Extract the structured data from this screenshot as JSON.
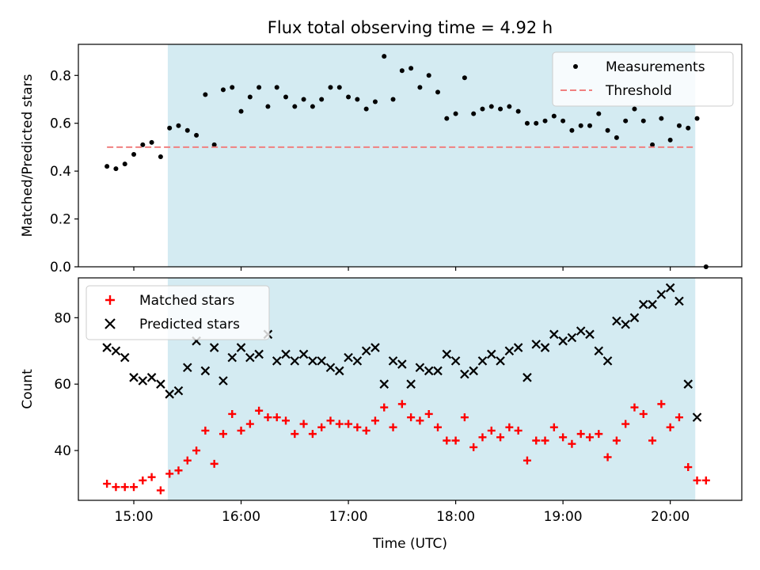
{
  "title": "Flux total observing time = 4.92 h",
  "colors": {
    "band": "#add8e6",
    "measurement": "#000000",
    "threshold": "#f08080",
    "matched": "#ff0000",
    "predicted": "#000000"
  },
  "chart_data": [
    {
      "type": "scatter",
      "ylabel": "Matched/Predicted stars",
      "ylim": [
        0,
        0.93
      ],
      "yticks": [
        "0.0",
        "0.2",
        "0.4",
        "0.6",
        "0.8"
      ],
      "xlim": [
        "14:29",
        "20:40"
      ],
      "shaded_band": [
        "15:19",
        "20:14"
      ],
      "legend": {
        "placement": "top-right",
        "entries": [
          "Measurements",
          "Threshold"
        ]
      },
      "series": [
        {
          "name": "Measurements",
          "x": [
            "14:45",
            "14:50",
            "14:55",
            "15:00",
            "15:05",
            "15:10",
            "15:15",
            "15:20",
            "15:25",
            "15:30",
            "15:35",
            "15:40",
            "15:45",
            "15:50",
            "15:55",
            "16:00",
            "16:05",
            "16:10",
            "16:15",
            "16:20",
            "16:25",
            "16:30",
            "16:35",
            "16:40",
            "16:45",
            "16:50",
            "16:55",
            "17:00",
            "17:05",
            "17:10",
            "17:15",
            "17:20",
            "17:25",
            "17:30",
            "17:35",
            "17:40",
            "17:45",
            "17:50",
            "17:55",
            "18:00",
            "18:05",
            "18:10",
            "18:15",
            "18:20",
            "18:25",
            "18:30",
            "18:35",
            "18:40",
            "18:45",
            "18:50",
            "18:55",
            "19:00",
            "19:05",
            "19:10",
            "19:15",
            "19:20",
            "19:25",
            "19:30",
            "19:35",
            "19:40",
            "19:45",
            "19:50",
            "19:55",
            "20:00",
            "20:05",
            "20:10",
            "20:15",
            "20:20"
          ],
          "y": [
            0.42,
            0.41,
            0.43,
            0.47,
            0.51,
            0.52,
            0.46,
            0.58,
            0.59,
            0.57,
            0.55,
            0.72,
            0.51,
            0.74,
            0.75,
            0.65,
            0.71,
            0.75,
            0.67,
            0.75,
            0.71,
            0.67,
            0.7,
            0.67,
            0.7,
            0.75,
            0.75,
            0.71,
            0.7,
            0.66,
            0.69,
            0.88,
            0.7,
            0.82,
            0.83,
            0.75,
            0.8,
            0.73,
            0.62,
            0.64,
            0.79,
            0.64,
            0.66,
            0.67,
            0.66,
            0.67,
            0.65,
            0.6,
            0.6,
            0.61,
            0.63,
            0.61,
            0.57,
            0.59,
            0.59,
            0.64,
            0.57,
            0.54,
            0.61,
            0.66,
            0.61,
            0.51,
            0.62,
            0.53,
            0.59,
            0.58,
            0.62,
            0.0
          ]
        },
        {
          "name": "Threshold",
          "x": [
            "14:45",
            "20:14"
          ],
          "y": [
            0.5,
            0.5
          ]
        }
      ]
    },
    {
      "type": "scatter",
      "xlabel": "Time (UTC)",
      "ylabel": "Count",
      "ylim": [
        25,
        92
      ],
      "yticks": [
        "40",
        "60",
        "80"
      ],
      "xticks": [
        "15:00",
        "16:00",
        "17:00",
        "18:00",
        "19:00",
        "20:00"
      ],
      "xlim": [
        "14:29",
        "20:40"
      ],
      "shaded_band": [
        "15:19",
        "20:14"
      ],
      "legend": {
        "placement": "top-left",
        "entries": [
          "Matched stars",
          "Predicted stars"
        ]
      },
      "series": [
        {
          "name": "Matched stars",
          "marker": "plus",
          "x": [
            "14:45",
            "14:50",
            "14:55",
            "15:00",
            "15:05",
            "15:10",
            "15:15",
            "15:20",
            "15:25",
            "15:30",
            "15:35",
            "15:40",
            "15:45",
            "15:50",
            "15:55",
            "16:00",
            "16:05",
            "16:10",
            "16:15",
            "16:20",
            "16:25",
            "16:30",
            "16:35",
            "16:40",
            "16:45",
            "16:50",
            "16:55",
            "17:00",
            "17:05",
            "17:10",
            "17:15",
            "17:20",
            "17:25",
            "17:30",
            "17:35",
            "17:40",
            "17:45",
            "17:50",
            "17:55",
            "18:00",
            "18:05",
            "18:10",
            "18:15",
            "18:20",
            "18:25",
            "18:30",
            "18:35",
            "18:40",
            "18:45",
            "18:50",
            "18:55",
            "19:00",
            "19:05",
            "19:10",
            "19:15",
            "19:20",
            "19:25",
            "19:30",
            "19:35",
            "19:40",
            "19:45",
            "19:50",
            "19:55",
            "20:00",
            "20:05",
            "20:10",
            "20:15",
            "20:20"
          ],
          "y": [
            30,
            29,
            29,
            29,
            31,
            32,
            28,
            33,
            34,
            37,
            40,
            46,
            36,
            45,
            51,
            46,
            48,
            52,
            50,
            50,
            49,
            45,
            48,
            45,
            47,
            49,
            48,
            48,
            47,
            46,
            49,
            53,
            47,
            54,
            50,
            49,
            51,
            47,
            43,
            43,
            50,
            41,
            44,
            46,
            44,
            47,
            46,
            37,
            43,
            43,
            47,
            44,
            42,
            45,
            44,
            45,
            38,
            43,
            48,
            53,
            51,
            43,
            54,
            47,
            50,
            35,
            31,
            31
          ]
        },
        {
          "name": "Predicted stars",
          "marker": "x",
          "x": [
            "14:45",
            "14:50",
            "14:55",
            "15:00",
            "15:05",
            "15:10",
            "15:15",
            "15:20",
            "15:25",
            "15:30",
            "15:35",
            "15:40",
            "15:45",
            "15:50",
            "15:55",
            "16:00",
            "16:05",
            "16:10",
            "16:15",
            "16:20",
            "16:25",
            "16:30",
            "16:35",
            "16:40",
            "16:45",
            "16:50",
            "16:55",
            "17:00",
            "17:05",
            "17:10",
            "17:15",
            "17:20",
            "17:25",
            "17:30",
            "17:35",
            "17:40",
            "17:45",
            "17:50",
            "17:55",
            "18:00",
            "18:05",
            "18:10",
            "18:15",
            "18:20",
            "18:25",
            "18:30",
            "18:35",
            "18:40",
            "18:45",
            "18:50",
            "18:55",
            "19:00",
            "19:05",
            "19:10",
            "19:15",
            "19:20",
            "19:25",
            "19:30",
            "19:35",
            "19:40",
            "19:45",
            "19:50",
            "19:55",
            "20:00",
            "20:05",
            "20:10",
            "20:15"
          ],
          "y": [
            71,
            70,
            68,
            62,
            61,
            62,
            60,
            57,
            58,
            65,
            73,
            64,
            71,
            61,
            68,
            71,
            68,
            69,
            75,
            67,
            69,
            67,
            69,
            67,
            67,
            65,
            64,
            68,
            67,
            70,
            71,
            60,
            67,
            66,
            60,
            65,
            64,
            64,
            69,
            67,
            63,
            64,
            67,
            69,
            67,
            70,
            71,
            62,
            72,
            71,
            75,
            73,
            74,
            76,
            75,
            70,
            67,
            79,
            78,
            80,
            84,
            84,
            87,
            89,
            85,
            60,
            50
          ]
        }
      ]
    }
  ]
}
